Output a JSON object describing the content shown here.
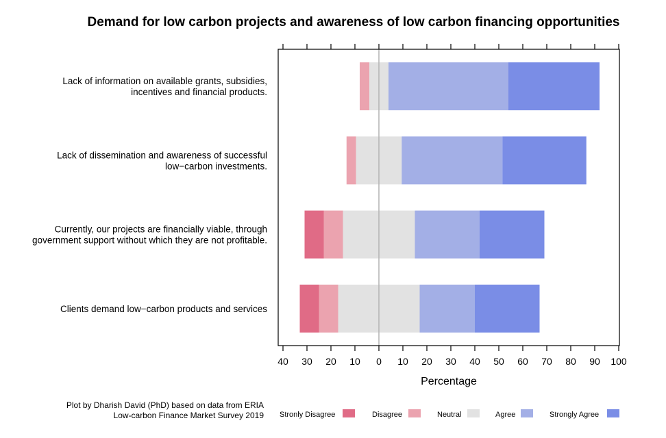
{
  "chart_data": {
    "type": "bar",
    "orientation": "horizontal",
    "stacked": "diverging",
    "title": "Demand for low carbon projects and awareness of low carbon financing opportunities",
    "xlabel": "Percentage",
    "ylabel": "",
    "xlim": [
      -40,
      100
    ],
    "xticks": [
      -40,
      -30,
      -20,
      -10,
      0,
      10,
      20,
      30,
      40,
      50,
      60,
      70,
      80,
      90,
      100
    ],
    "xtick_labels": [
      "40",
      "30",
      "20",
      "10",
      "0",
      "10",
      "20",
      "30",
      "40",
      "50",
      "60",
      "70",
      "80",
      "90",
      "100"
    ],
    "categories": [
      [
        "Lack of information on available grants, subsidies,",
        "incentives and financial products."
      ],
      [
        "Lack of dissemination and awareness of successful",
        "low−carbon investments."
      ],
      [
        "Currently, our projects are financially viable, through",
        "government support without which they are not profitable."
      ],
      [
        "Clients demand low−carbon products and services"
      ]
    ],
    "series": [
      {
        "name": "Stronly Disagree",
        "color": "#e06b86",
        "values": [
          0,
          0,
          8,
          8
        ]
      },
      {
        "name": "Disagree",
        "color": "#eba3af",
        "values": [
          4,
          4,
          8,
          8
        ]
      },
      {
        "name": "Neutral",
        "color": "#e2e2e2",
        "values": [
          8,
          19,
          30,
          34
        ]
      },
      {
        "name": "Agree",
        "color": "#a3afe6",
        "values": [
          50,
          42,
          27,
          23
        ]
      },
      {
        "name": "Strongly Agree",
        "color": "#7a8de6",
        "values": [
          38,
          35,
          27,
          27
        ]
      }
    ],
    "legend_position": "bottom",
    "grid": false
  },
  "credit": [
    "Plot by Dharish David (PhD) based on data from ERIA",
    "Low-carbon Finance Market Survey 2019"
  ]
}
